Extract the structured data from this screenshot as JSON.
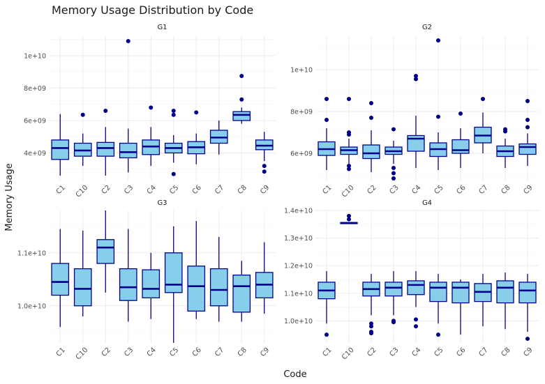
{
  "chart_data": {
    "type": "boxplot",
    "title": "Memory Usage Distribution by Code",
    "xlabel": "Code",
    "ylabel": "Memory Usage",
    "colors": {
      "box_fill": "#87ceeb",
      "box_stroke": "#00008b",
      "outlier": "#00008b"
    },
    "categories": [
      "C1",
      "C10",
      "C2",
      "C3",
      "C4",
      "C5",
      "C6",
      "C7",
      "C8",
      "C9"
    ],
    "panels": [
      {
        "name": "G1",
        "ylim": [
          2300000000.0,
          11200000000.0
        ],
        "ytick_values": [
          4000000000.0,
          6000000000.0,
          8000000000.0,
          10000000000.0
        ],
        "ytick_labels": [
          "4e+09",
          "6e+09",
          "8e+09",
          "1e+10"
        ],
        "boxes": [
          {
            "code": "C1",
            "stats": [
              2600000000.0,
              3600000000.0,
              4300000000.0,
              4800000000.0,
              6400000000.0
            ],
            "outliers": []
          },
          {
            "code": "C10",
            "stats": [
              3200000000.0,
              3800000000.0,
              4150000000.0,
              4600000000.0,
              5200000000.0
            ],
            "outliers": [
              6350000000.0
            ]
          },
          {
            "code": "C2",
            "stats": [
              2600000000.0,
              3800000000.0,
              4300000000.0,
              4650000000.0,
              5600000000.0
            ],
            "outliers": [
              6600000000.0
            ]
          },
          {
            "code": "C3",
            "stats": [
              2800000000.0,
              3700000000.0,
              4050000000.0,
              4600000000.0,
              5500000000.0
            ],
            "outliers": [
              10900000000.0
            ]
          },
          {
            "code": "C4",
            "stats": [
              3200000000.0,
              3900000000.0,
              4400000000.0,
              4800000000.0,
              5600000000.0
            ],
            "outliers": [
              6800000000.0
            ]
          },
          {
            "code": "C5",
            "stats": [
              3400000000.0,
              4000000000.0,
              4300000000.0,
              4600000000.0,
              5100000000.0
            ],
            "outliers": [
              6600000000.0,
              6350000000.0,
              2700000000.0
            ]
          },
          {
            "code": "C6",
            "stats": [
              3300000000.0,
              3950000000.0,
              4350000000.0,
              4700000000.0,
              5200000000.0
            ],
            "outliers": [
              6500000000.0
            ]
          },
          {
            "code": "C7",
            "stats": [
              3900000000.0,
              4600000000.0,
              4950000000.0,
              5400000000.0,
              6000000000.0
            ],
            "outliers": []
          },
          {
            "code": "C8",
            "stats": [
              5800000000.0,
              6000000000.0,
              6350000000.0,
              6550000000.0,
              6800000000.0
            ],
            "outliers": [
              8750000000.0,
              7300000000.0
            ]
          },
          {
            "code": "C9",
            "stats": [
              3500000000.0,
              4200000000.0,
              4450000000.0,
              4800000000.0,
              5300000000.0
            ],
            "outliers": [
              3200000000.0,
              2850000000.0
            ]
          }
        ]
      },
      {
        "name": "G2",
        "ylim": [
          4700000000.0,
          11600000000.0
        ],
        "ytick_values": [
          6000000000.0,
          8000000000.0,
          10000000000.0
        ],
        "ytick_labels": [
          "6e+09",
          "8e+09",
          "1e+10"
        ],
        "boxes": [
          {
            "code": "C1",
            "stats": [
              5200000000.0,
              5900000000.0,
              6200000000.0,
              6550000000.0,
              7200000000.0
            ],
            "outliers": [
              8600000000.0,
              7600000000.0
            ]
          },
          {
            "code": "C10",
            "stats": [
              5500000000.0,
              5950000000.0,
              6150000000.0,
              6300000000.0,
              6700000000.0
            ],
            "outliers": [
              8600000000.0,
              7000000000.0,
              6900000000.0,
              5400000000.0,
              5250000000.0
            ]
          },
          {
            "code": "C2",
            "stats": [
              5100000000.0,
              5750000000.0,
              6000000000.0,
              6400000000.0,
              7100000000.0
            ],
            "outliers": [
              8400000000.0,
              7700000000.0
            ]
          },
          {
            "code": "C3",
            "stats": [
              5500000000.0,
              5950000000.0,
              6100000000.0,
              6300000000.0,
              6600000000.0
            ],
            "outliers": [
              7150000000.0,
              5300000000.0,
              5050000000.0,
              4800000000.0
            ]
          },
          {
            "code": "C4",
            "stats": [
              5300000000.0,
              6100000000.0,
              6700000000.0,
              6850000000.0,
              7800000000.0
            ],
            "outliers": [
              9700000000.0,
              9550000000.0
            ]
          },
          {
            "code": "C5",
            "stats": [
              5200000000.0,
              5850000000.0,
              6200000000.0,
              6500000000.0,
              7000000000.0
            ],
            "outliers": [
              11400000000.0,
              7750000000.0
            ]
          },
          {
            "code": "C6",
            "stats": [
              5300000000.0,
              6000000000.0,
              6150000000.0,
              6650000000.0,
              7200000000.0
            ],
            "outliers": [
              7900000000.0
            ]
          },
          {
            "code": "C7",
            "stats": [
              6000000000.0,
              6500000000.0,
              6850000000.0,
              7250000000.0,
              7950000000.0
            ],
            "outliers": [
              8600000000.0
            ]
          },
          {
            "code": "C8",
            "stats": [
              5300000000.0,
              5850000000.0,
              6100000000.0,
              6350000000.0,
              6700000000.0
            ],
            "outliers": [
              7150000000.0,
              7050000000.0
            ]
          },
          {
            "code": "C9",
            "stats": [
              5400000000.0,
              5950000000.0,
              6300000000.0,
              6450000000.0,
              6950000000.0
            ],
            "outliers": [
              8500000000.0,
              7600000000.0,
              7250000000.0
            ]
          }
        ]
      },
      {
        "name": "G3",
        "ylim": [
          9300000000.0,
          11800000000.0
        ],
        "ytick_values": [
          10000000000.0,
          11000000000.0
        ],
        "ytick_labels": [
          "1.0e+10",
          "1.1e+10"
        ],
        "boxes": [
          {
            "code": "C1",
            "stats": [
              9600000000.0,
              10200000000.0,
              10450000000.0,
              10800000000.0,
              11450000000.0
            ],
            "outliers": []
          },
          {
            "code": "C10",
            "stats": [
              9800000000.0,
              10000000000.0,
              10320000000.0,
              10700000000.0,
              11420000000.0
            ],
            "outliers": []
          },
          {
            "code": "C2",
            "stats": [
              10250000000.0,
              10800000000.0,
              11100000000.0,
              11250000000.0,
              11800000000.0
            ],
            "outliers": []
          },
          {
            "code": "C3",
            "stats": [
              9700000000.0,
              10100000000.0,
              10350000000.0,
              10700000000.0,
              11450000000.0
            ],
            "outliers": []
          },
          {
            "code": "C4",
            "stats": [
              9750000000.0,
              10150000000.0,
              10320000000.0,
              10680000000.0,
              11000000000.0
            ],
            "outliers": []
          },
          {
            "code": "C5",
            "stats": [
              9300000000.0,
              10250000000.0,
              10400000000.0,
              11000000000.0,
              11500000000.0
            ],
            "outliers": []
          },
          {
            "code": "C6",
            "stats": [
              9750000000.0,
              9900000000.0,
              10370000000.0,
              10750000000.0,
              11600000000.0
            ],
            "outliers": []
          },
          {
            "code": "C7",
            "stats": [
              9700000000.0,
              10000000000.0,
              10300000000.0,
              10700000000.0,
              11300000000.0
            ],
            "outliers": []
          },
          {
            "code": "C8",
            "stats": [
              9700000000.0,
              9880000000.0,
              10370000000.0,
              10580000000.0,
              10850000000.0
            ],
            "outliers": []
          },
          {
            "code": "C9",
            "stats": [
              9850000000.0,
              10150000000.0,
              10400000000.0,
              10630000000.0,
              11200000000.0
            ],
            "outliers": []
          }
        ]
      },
      {
        "name": "G4",
        "ylim": [
          9200000000.0,
          14000000000.0
        ],
        "ytick_values": [
          10000000000.0,
          11000000000.0,
          12000000000.0,
          13000000000.0,
          14000000000.0
        ],
        "ytick_labels": [
          "1.0e+10",
          "1.1e+10",
          "1.2e+10",
          "1.3e+10",
          "1.4e+10"
        ],
        "boxes": [
          {
            "code": "C1",
            "stats": [
              9900000000.0,
              10800000000.0,
              11100000000.0,
              11400000000.0,
              11800000000.0
            ],
            "outliers": [
              9500000000.0
            ]
          },
          {
            "code": "C10",
            "stats": [
              13530000000.0,
              13530000000.0,
              13550000000.0,
              13560000000.0,
              13580000000.0
            ],
            "outliers": [
              13800000000.0,
              13680000000.0
            ]
          },
          {
            "code": "C2",
            "stats": [
              10200000000.0,
              10900000000.0,
              11150000000.0,
              11400000000.0,
              11700000000.0
            ],
            "outliers": [
              9900000000.0,
              9800000000.0,
              9600000000.0,
              9550000000.0
            ]
          },
          {
            "code": "C3",
            "stats": [
              10200000000.0,
              10900000000.0,
              11200000000.0,
              11400000000.0,
              11800000000.0
            ],
            "outliers": [
              10000000000.0,
              9950000000.0
            ]
          },
          {
            "code": "C4",
            "stats": [
              10500000000.0,
              10950000000.0,
              11300000000.0,
              11450000000.0,
              11800000000.0
            ],
            "outliers": [
              10050000000.0,
              9800000000.0
            ]
          },
          {
            "code": "C5",
            "stats": [
              9900000000.0,
              10700000000.0,
              11200000000.0,
              11400000000.0,
              11700000000.0
            ],
            "outliers": [
              9500000000.0
            ]
          },
          {
            "code": "C6",
            "stats": [
              9500000000.0,
              10650000000.0,
              11200000000.0,
              11400000000.0,
              11500000000.0
            ],
            "outliers": []
          },
          {
            "code": "C7",
            "stats": [
              9800000000.0,
              10700000000.0,
              11050000000.0,
              11350000000.0,
              11700000000.0
            ],
            "outliers": []
          },
          {
            "code": "C8",
            "stats": [
              9700000000.0,
              10650000000.0,
              11200000000.0,
              11450000000.0,
              11750000000.0
            ],
            "outliers": []
          },
          {
            "code": "C9",
            "stats": [
              9600000000.0,
              10650000000.0,
              11100000000.0,
              11400000000.0,
              11700000000.0
            ],
            "outliers": [
              9350000000.0
            ]
          }
        ]
      }
    ]
  }
}
